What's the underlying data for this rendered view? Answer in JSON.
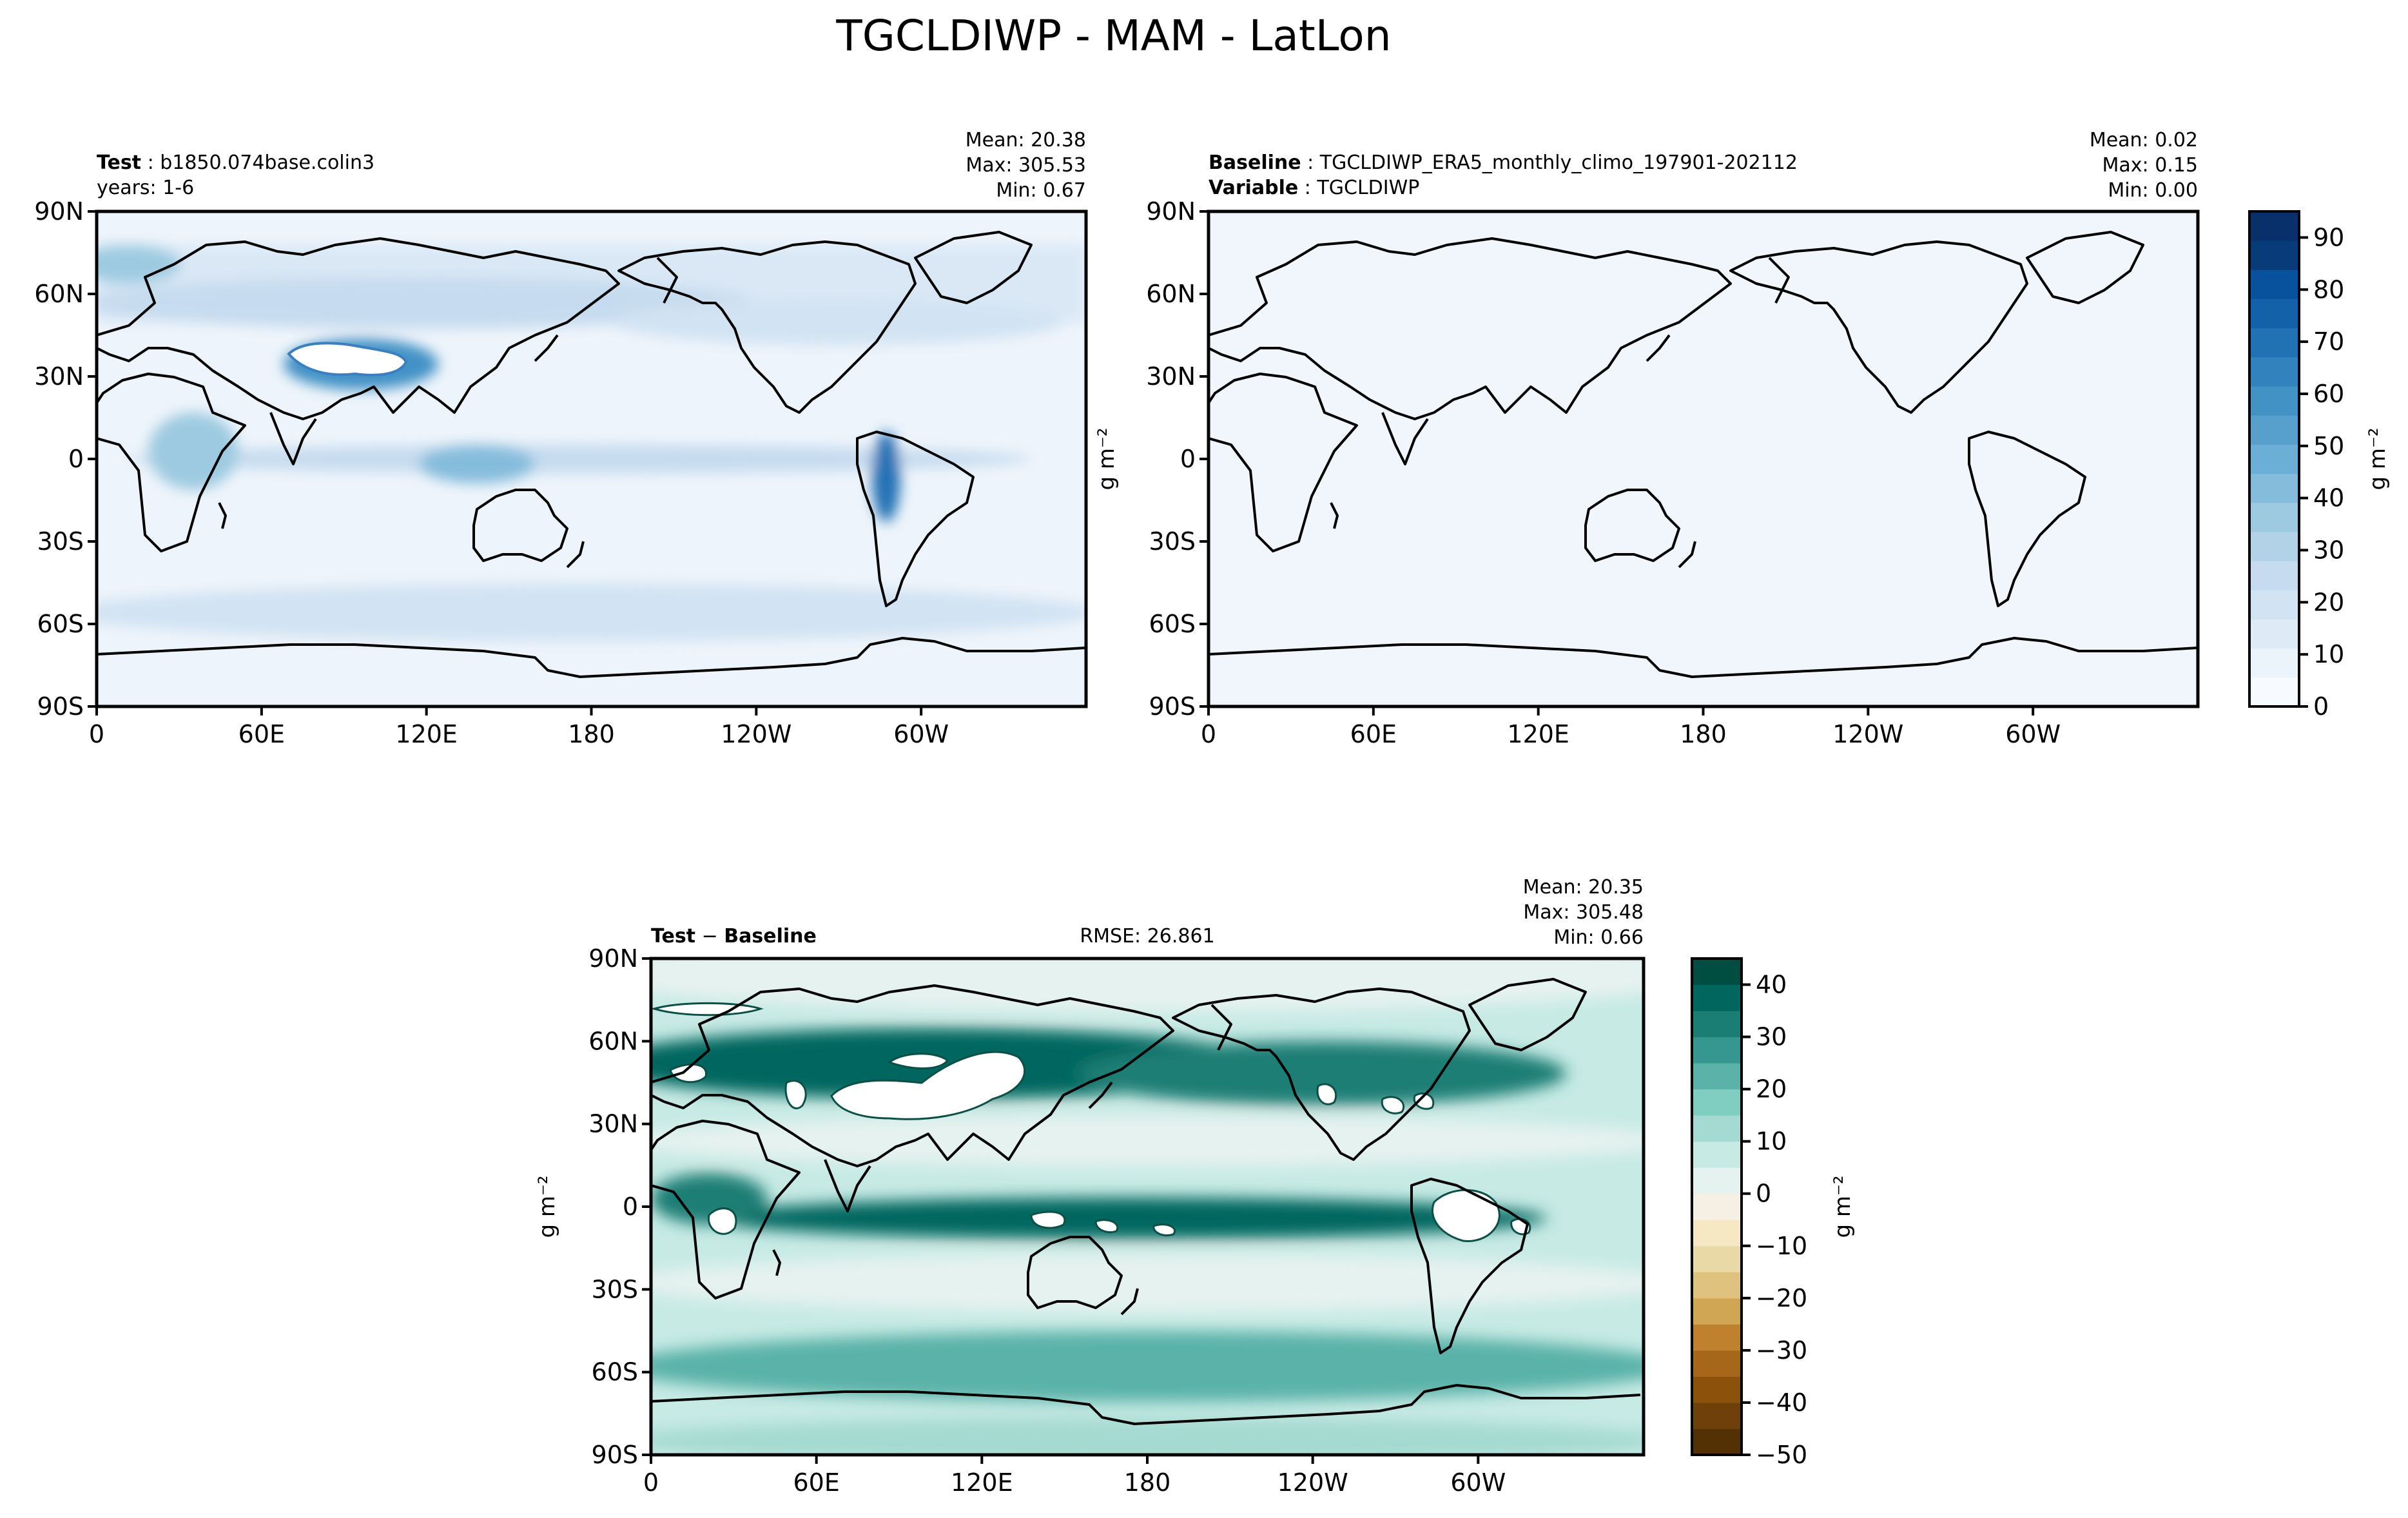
{
  "figure": {
    "title": "TGCLDIWP - MAM - LatLon"
  },
  "chart_data": [
    {
      "type": "heatmap",
      "panel": "test",
      "header": {
        "label_bold": "Test",
        "label_value": "b1850.074base.colin3",
        "line2": "years: 1-6"
      },
      "stats": {
        "mean": "Mean: 20.38",
        "max": "Max: 305.53",
        "min": "Min:  0.67"
      },
      "xticks": [
        "0",
        "60E",
        "120E",
        "180",
        "120W",
        "60W"
      ],
      "yticks": [
        "90N",
        "60N",
        "30N",
        "0",
        "30S",
        "60S",
        "90S"
      ],
      "xlim": [
        0,
        360
      ],
      "ylim": [
        -90,
        90
      ],
      "colormap": "Blues",
      "colorbar": {
        "ticks": [
          0,
          10,
          20,
          30,
          40,
          50,
          60,
          70,
          80,
          90
        ],
        "label": "g m⁻²",
        "range": [
          0,
          95
        ]
      },
      "features": [
        {
          "name": "Tibetan Plateau missing",
          "lon": [
            70,
            105
          ],
          "lat": [
            30,
            39
          ],
          "value": null
        },
        {
          "name": "ITCZ band",
          "lat": 5,
          "value": 35
        },
        {
          "name": "Andes maximum",
          "lon": 285,
          "lat": -10,
          "value": 90
        }
      ]
    },
    {
      "type": "heatmap",
      "panel": "baseline",
      "header": {
        "label1_bold": "Baseline",
        "label1_value": "TGCLDIWP_ERA5_monthly_climo_197901-202112",
        "label2_bold": "Variable",
        "label2_value": "TGCLDIWP"
      },
      "stats": {
        "mean": "Mean:  0.02",
        "max": "Max:  0.15",
        "min": "Min:  0.00"
      },
      "xticks": [
        "0",
        "60E",
        "120E",
        "180",
        "120W",
        "60W"
      ],
      "yticks": [
        "90N",
        "60N",
        "30N",
        "0",
        "30S",
        "60S",
        "90S"
      ],
      "xlim": [
        0,
        360
      ],
      "ylim": [
        -90,
        90
      ],
      "ylabel": "g m⁻²",
      "uniform_value": 0.02,
      "colorbar": {
        "ticks": [
          0,
          10,
          20,
          30,
          40,
          50,
          60,
          70,
          80,
          90
        ],
        "label": "g m⁻²"
      }
    },
    {
      "type": "heatmap",
      "panel": "difference",
      "header": {
        "left_bold_a": "Test",
        "left_sep": " − ",
        "left_bold_b": "Baseline",
        "rmse": "RMSE: 26.861"
      },
      "stats": {
        "mean": "Mean: 20.35",
        "max": "Max: 305.48",
        "min": "Min:  0.66"
      },
      "xticks": [
        "0",
        "60E",
        "120E",
        "180",
        "120W",
        "60W"
      ],
      "yticks": [
        "90N",
        "60N",
        "30N",
        "0",
        "30S",
        "60S",
        "90S"
      ],
      "xlim": [
        0,
        360
      ],
      "ylim": [
        -90,
        90
      ],
      "ylabel": "g m⁻²",
      "colormap": "BrBG",
      "colorbar": {
        "ticks": [
          40,
          30,
          20,
          10,
          0,
          -10,
          -20,
          -30,
          -40,
          -50
        ],
        "label": "g m⁻²",
        "range": [
          -50,
          45
        ]
      }
    }
  ],
  "palettes": {
    "blues": [
      "#f7fbff",
      "#ebf3fb",
      "#deebf7",
      "#d2e3f3",
      "#c6dbef",
      "#b2d2e8",
      "#9ecae1",
      "#85bcdc",
      "#6baed6",
      "#57a0ce",
      "#4292c6",
      "#3282be",
      "#2171b5",
      "#1361a9",
      "#08519c",
      "#083b7a",
      "#08306b"
    ],
    "brbg": [
      "#543005",
      "#6f400a",
      "#8c510a",
      "#a6671b",
      "#bf812d",
      "#d0a554",
      "#dfc27d",
      "#e9d9a6",
      "#f6e8c3",
      "#f5f0e3",
      "#e6f2ef",
      "#c7eae5",
      "#a4dad1",
      "#80cdc1",
      "#5ab2a8",
      "#35978f",
      "#1b7e74",
      "#01665e",
      "#004d42"
    ],
    "ocean_fill_diff": "#c0e6e0",
    "land_fill_test": "#e4effa",
    "baseline_fill": "#f1f6fd"
  }
}
